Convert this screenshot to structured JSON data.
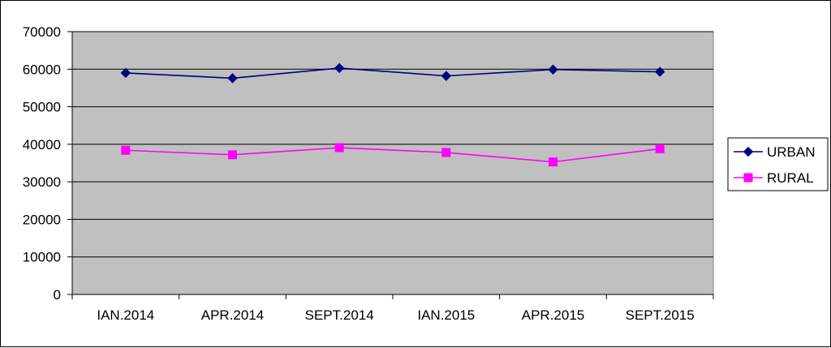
{
  "colors": {
    "plot_background": "#c0c0c0",
    "gridline": "#000000",
    "axis": "#000000"
  },
  "chart_data": {
    "type": "line",
    "title": "",
    "xlabel": "",
    "ylabel": "",
    "categories": [
      "IAN.2014",
      "APR.2014",
      "SEPT.2014",
      "IAN.2015",
      "APR.2015",
      "SEPT.2015"
    ],
    "ylim": [
      0,
      70000
    ],
    "yticks": [
      0,
      10000,
      20000,
      30000,
      40000,
      50000,
      60000,
      70000
    ],
    "ytick_labels": [
      "0",
      "10000",
      "20000",
      "30000",
      "40000",
      "50000",
      "60000",
      "70000"
    ],
    "grid": true,
    "legend_position": "right",
    "series": [
      {
        "name": "URBAN",
        "color": "#000080",
        "marker": "diamond",
        "values": [
          59000,
          57600,
          60300,
          58200,
          59900,
          59300
        ]
      },
      {
        "name": "RURAL",
        "color": "#ff00ff",
        "marker": "square",
        "values": [
          38400,
          37200,
          39100,
          37800,
          35300,
          38800
        ]
      }
    ]
  }
}
